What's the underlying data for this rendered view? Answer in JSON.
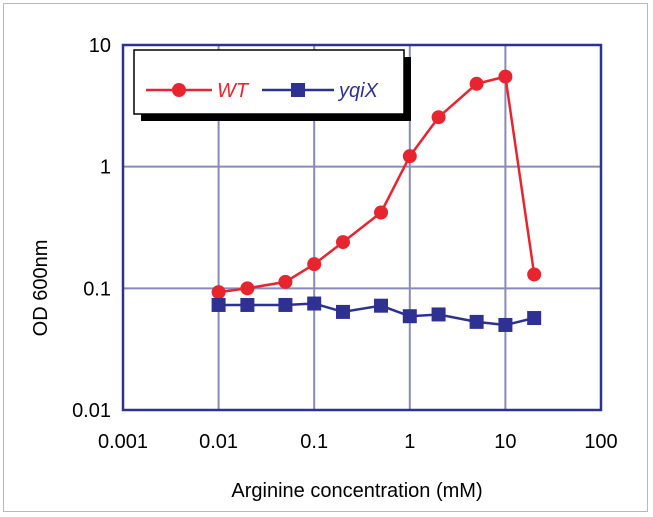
{
  "chart_data": {
    "type": "line",
    "xlabel": "Arginine concentration (mM)",
    "ylabel": "OD 600nm",
    "x_scale": "log",
    "y_scale": "log",
    "xlim": [
      0.001,
      100
    ],
    "ylim": [
      0.01,
      10
    ],
    "x_ticks": [
      "0.001",
      "0.01",
      "0.1",
      "1",
      "10",
      "100"
    ],
    "y_ticks": [
      "0.01",
      "0.1",
      "1",
      "10"
    ],
    "grid": true,
    "legend_position": "top-left",
    "series": [
      {
        "name": "WT",
        "color": "#e8252f",
        "marker": "circle",
        "x": [
          0.01,
          0.02,
          0.05,
          0.1,
          0.2,
          0.5,
          1,
          2,
          5,
          10,
          20
        ],
        "y": [
          0.093,
          0.1,
          0.113,
          0.158,
          0.24,
          0.42,
          1.22,
          2.55,
          4.8,
          5.5,
          0.13
        ]
      },
      {
        "name": "yqiX",
        "color": "#2e3192",
        "marker": "square",
        "x": [
          0.01,
          0.02,
          0.05,
          0.1,
          0.2,
          0.5,
          1,
          2,
          5,
          10,
          20
        ],
        "y": [
          0.073,
          0.073,
          0.073,
          0.075,
          0.064,
          0.072,
          0.059,
          0.061,
          0.053,
          0.05,
          0.057
        ]
      }
    ]
  },
  "colors": {
    "grid": "#8a8ab8",
    "plot_border": "#2e3192"
  }
}
